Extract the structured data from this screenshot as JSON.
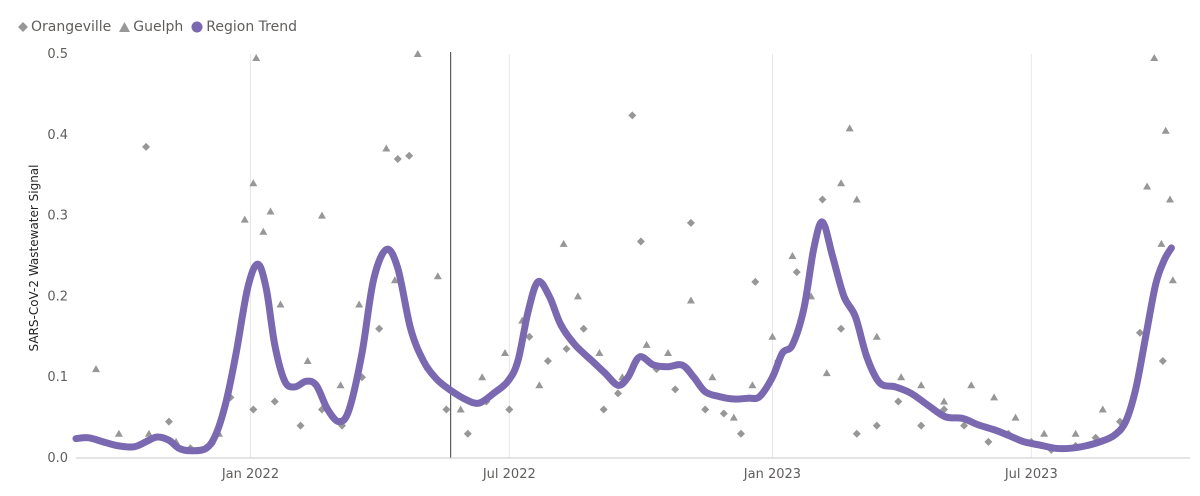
{
  "legend": {
    "items": [
      {
        "label": "Orangeville",
        "marker": "diamond",
        "color": "#979797"
      },
      {
        "label": "Guelph",
        "marker": "triangle",
        "color": "#979797"
      },
      {
        "label": "Region Trend",
        "marker": "circle",
        "color": "#7a68b0"
      }
    ]
  },
  "chart_data": {
    "type": "scatter",
    "ylabel": "SARS-CoV-2 Wastewater Signal",
    "ylim": [
      0,
      0.5
    ],
    "yticks": [
      "0.0",
      "0.1",
      "0.2",
      "0.3",
      "0.4",
      "0.5"
    ],
    "xlim": [
      "2021-09-01",
      "2023-10-20"
    ],
    "xticks": [
      {
        "date": "2022-01-01",
        "label": "Jan 2022"
      },
      {
        "date": "2022-07-01",
        "label": "Jul 2022"
      },
      {
        "date": "2023-01-01",
        "label": "Jan 2023"
      },
      {
        "date": "2023-07-01",
        "label": "Jul 2023"
      }
    ],
    "reference_line_date": "2022-05-21",
    "grid": "vertical",
    "colors": {
      "points": "#979797",
      "trend": "#7a68b0",
      "grid": "#e6e6e6",
      "axis": "#c8c8c8"
    },
    "series": [
      {
        "name": "Region Trend",
        "kind": "line",
        "points": [
          [
            "2021-09-01",
            0.024
          ],
          [
            "2021-09-10",
            0.025
          ],
          [
            "2021-09-20",
            0.02
          ],
          [
            "2021-10-01",
            0.015
          ],
          [
            "2021-10-12",
            0.014
          ],
          [
            "2021-10-22",
            0.022
          ],
          [
            "2021-10-28",
            0.026
          ],
          [
            "2021-11-05",
            0.022
          ],
          [
            "2021-11-12",
            0.012
          ],
          [
            "2021-11-20",
            0.009
          ],
          [
            "2021-12-01",
            0.012
          ],
          [
            "2021-12-08",
            0.03
          ],
          [
            "2021-12-15",
            0.07
          ],
          [
            "2021-12-22",
            0.13
          ],
          [
            "2021-12-30",
            0.21
          ],
          [
            "2022-01-06",
            0.24
          ],
          [
            "2022-01-12",
            0.21
          ],
          [
            "2022-01-18",
            0.14
          ],
          [
            "2022-01-25",
            0.095
          ],
          [
            "2022-02-01",
            0.088
          ],
          [
            "2022-02-09",
            0.095
          ],
          [
            "2022-02-16",
            0.09
          ],
          [
            "2022-02-24",
            0.06
          ],
          [
            "2022-03-04",
            0.045
          ],
          [
            "2022-03-11",
            0.06
          ],
          [
            "2022-03-20",
            0.13
          ],
          [
            "2022-03-28",
            0.22
          ],
          [
            "2022-04-06",
            0.258
          ],
          [
            "2022-04-14",
            0.235
          ],
          [
            "2022-04-23",
            0.16
          ],
          [
            "2022-05-02",
            0.12
          ],
          [
            "2022-05-11",
            0.098
          ],
          [
            "2022-05-20",
            0.085
          ],
          [
            "2022-06-01",
            0.072
          ],
          [
            "2022-06-10",
            0.068
          ],
          [
            "2022-06-20",
            0.08
          ],
          [
            "2022-06-30",
            0.095
          ],
          [
            "2022-07-07",
            0.12
          ],
          [
            "2022-07-14",
            0.18
          ],
          [
            "2022-07-21",
            0.218
          ],
          [
            "2022-07-29",
            0.2
          ],
          [
            "2022-08-06",
            0.165
          ],
          [
            "2022-08-16",
            0.14
          ],
          [
            "2022-08-28",
            0.12
          ],
          [
            "2022-09-06",
            0.105
          ],
          [
            "2022-09-15",
            0.09
          ],
          [
            "2022-09-22",
            0.1
          ],
          [
            "2022-09-30",
            0.125
          ],
          [
            "2022-10-10",
            0.115
          ],
          [
            "2022-10-20",
            0.113
          ],
          [
            "2022-10-30",
            0.115
          ],
          [
            "2022-11-07",
            0.1
          ],
          [
            "2022-11-15",
            0.082
          ],
          [
            "2022-11-25",
            0.076
          ],
          [
            "2022-12-05",
            0.073
          ],
          [
            "2022-12-15",
            0.074
          ],
          [
            "2022-12-23",
            0.076
          ],
          [
            "2023-01-01",
            0.1
          ],
          [
            "2023-01-08",
            0.13
          ],
          [
            "2023-01-15",
            0.14
          ],
          [
            "2023-01-23",
            0.185
          ],
          [
            "2023-01-30",
            0.26
          ],
          [
            "2023-02-05",
            0.292
          ],
          [
            "2023-02-12",
            0.25
          ],
          [
            "2023-02-20",
            0.2
          ],
          [
            "2023-02-28",
            0.175
          ],
          [
            "2023-03-08",
            0.125
          ],
          [
            "2023-03-17",
            0.093
          ],
          [
            "2023-03-28",
            0.088
          ],
          [
            "2023-04-08",
            0.08
          ],
          [
            "2023-04-20",
            0.065
          ],
          [
            "2023-05-02",
            0.051
          ],
          [
            "2023-05-14",
            0.049
          ],
          [
            "2023-05-25",
            0.041
          ],
          [
            "2023-06-05",
            0.035
          ],
          [
            "2023-06-15",
            0.028
          ],
          [
            "2023-06-26",
            0.02
          ],
          [
            "2023-07-07",
            0.016
          ],
          [
            "2023-07-18",
            0.012
          ],
          [
            "2023-07-28",
            0.012
          ],
          [
            "2023-08-08",
            0.015
          ],
          [
            "2023-08-18",
            0.02
          ],
          [
            "2023-08-28",
            0.028
          ],
          [
            "2023-09-05",
            0.045
          ],
          [
            "2023-09-12",
            0.085
          ],
          [
            "2023-09-19",
            0.15
          ],
          [
            "2023-09-26",
            0.215
          ],
          [
            "2023-10-02",
            0.245
          ],
          [
            "2023-10-07",
            0.26
          ]
        ]
      },
      {
        "name": "Orangeville",
        "kind": "diamond",
        "points": [
          [
            "2021-09-20",
            0.02
          ],
          [
            "2021-10-20",
            0.385
          ],
          [
            "2021-11-05",
            0.045
          ],
          [
            "2021-11-20",
            0.012
          ],
          [
            "2021-12-05",
            0.018
          ],
          [
            "2021-12-18",
            0.075
          ],
          [
            "2022-01-03",
            0.06
          ],
          [
            "2022-01-18",
            0.07
          ],
          [
            "2022-02-05",
            0.04
          ],
          [
            "2022-02-20",
            0.06
          ],
          [
            "2022-03-06",
            0.04
          ],
          [
            "2022-03-20",
            0.1
          ],
          [
            "2022-04-01",
            0.16
          ],
          [
            "2022-04-14",
            0.37
          ],
          [
            "2022-04-22",
            0.374
          ],
          [
            "2022-05-05",
            0.11
          ],
          [
            "2022-05-18",
            0.06
          ],
          [
            "2022-06-02",
            0.03
          ],
          [
            "2022-06-15",
            0.07
          ],
          [
            "2022-07-01",
            0.06
          ],
          [
            "2022-07-15",
            0.15
          ],
          [
            "2022-07-28",
            0.12
          ],
          [
            "2022-08-10",
            0.135
          ],
          [
            "2022-08-22",
            0.16
          ],
          [
            "2022-09-05",
            0.06
          ],
          [
            "2022-09-15",
            0.08
          ],
          [
            "2022-09-25",
            0.424
          ],
          [
            "2022-10-01",
            0.268
          ],
          [
            "2022-10-12",
            0.11
          ],
          [
            "2022-10-25",
            0.085
          ],
          [
            "2022-11-05",
            0.291
          ],
          [
            "2022-11-15",
            0.06
          ],
          [
            "2022-11-28",
            0.055
          ],
          [
            "2022-12-10",
            0.03
          ],
          [
            "2022-12-20",
            0.218
          ],
          [
            "2023-01-05",
            0.12
          ],
          [
            "2023-01-18",
            0.23
          ],
          [
            "2023-02-05",
            0.32
          ],
          [
            "2023-02-18",
            0.16
          ],
          [
            "2023-03-01",
            0.03
          ],
          [
            "2023-03-15",
            0.04
          ],
          [
            "2023-03-30",
            0.07
          ],
          [
            "2023-04-15",
            0.04
          ],
          [
            "2023-05-01",
            0.06
          ],
          [
            "2023-05-15",
            0.04
          ],
          [
            "2023-06-01",
            0.02
          ],
          [
            "2023-06-15",
            0.03
          ],
          [
            "2023-07-01",
            0.02
          ],
          [
            "2023-07-15",
            0.01
          ],
          [
            "2023-08-01",
            0.015
          ],
          [
            "2023-08-15",
            0.025
          ],
          [
            "2023-09-01",
            0.045
          ],
          [
            "2023-09-15",
            0.155
          ],
          [
            "2023-10-01",
            0.12
          ]
        ]
      },
      {
        "name": "Guelph",
        "kind": "triangle",
        "points": [
          [
            "2021-09-15",
            0.11
          ],
          [
            "2021-10-01",
            0.03
          ],
          [
            "2021-10-22",
            0.03
          ],
          [
            "2021-11-10",
            0.02
          ],
          [
            "2021-12-10",
            0.03
          ],
          [
            "2021-12-28",
            0.295
          ],
          [
            "2022-01-03",
            0.34
          ],
          [
            "2022-01-05",
            0.495
          ],
          [
            "2022-01-10",
            0.28
          ],
          [
            "2022-01-15",
            0.305
          ],
          [
            "2022-01-22",
            0.19
          ],
          [
            "2022-02-10",
            0.12
          ],
          [
            "2022-02-20",
            0.3
          ],
          [
            "2022-03-05",
            0.09
          ],
          [
            "2022-03-18",
            0.19
          ],
          [
            "2022-04-06",
            0.383
          ],
          [
            "2022-04-12",
            0.22
          ],
          [
            "2022-04-28",
            0.5
          ],
          [
            "2022-05-12",
            0.225
          ],
          [
            "2022-05-28",
            0.06
          ],
          [
            "2022-06-12",
            0.1
          ],
          [
            "2022-06-28",
            0.13
          ],
          [
            "2022-07-10",
            0.17
          ],
          [
            "2022-07-22",
            0.09
          ],
          [
            "2022-08-08",
            0.265
          ],
          [
            "2022-08-18",
            0.2
          ],
          [
            "2022-09-02",
            0.13
          ],
          [
            "2022-09-18",
            0.1
          ],
          [
            "2022-10-05",
            0.14
          ],
          [
            "2022-10-20",
            0.13
          ],
          [
            "2022-11-05",
            0.195
          ],
          [
            "2022-11-20",
            0.1
          ],
          [
            "2022-12-05",
            0.05
          ],
          [
            "2022-12-18",
            0.09
          ],
          [
            "2023-01-01",
            0.15
          ],
          [
            "2023-01-15",
            0.25
          ],
          [
            "2023-01-28",
            0.2
          ],
          [
            "2023-02-08",
            0.105
          ],
          [
            "2023-02-18",
            0.34
          ],
          [
            "2023-02-24",
            0.408
          ],
          [
            "2023-03-01",
            0.32
          ],
          [
            "2023-03-15",
            0.15
          ],
          [
            "2023-04-01",
            0.1
          ],
          [
            "2023-04-15",
            0.09
          ],
          [
            "2023-05-01",
            0.07
          ],
          [
            "2023-05-20",
            0.09
          ],
          [
            "2023-06-05",
            0.075
          ],
          [
            "2023-06-20",
            0.05
          ],
          [
            "2023-07-10",
            0.03
          ],
          [
            "2023-08-01",
            0.03
          ],
          [
            "2023-08-20",
            0.06
          ],
          [
            "2023-09-20",
            0.336
          ],
          [
            "2023-09-25",
            0.495
          ],
          [
            "2023-09-30",
            0.265
          ],
          [
            "2023-10-03",
            0.405
          ],
          [
            "2023-10-06",
            0.32
          ],
          [
            "2023-10-08",
            0.22
          ]
        ]
      }
    ]
  }
}
